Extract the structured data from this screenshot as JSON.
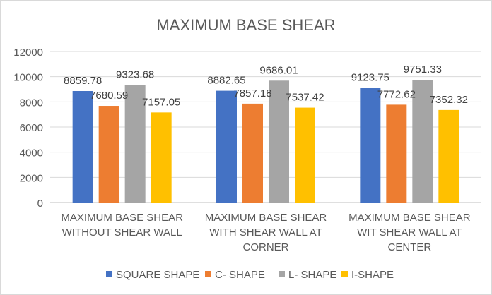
{
  "chart_data": {
    "type": "bar",
    "title": "MAXIMUM BASE SHEAR",
    "xlabel": "",
    "ylabel": "",
    "ylim": [
      0,
      12000
    ],
    "yticks": [
      0,
      2000,
      4000,
      6000,
      8000,
      10000,
      12000
    ],
    "grid": true,
    "legend_position": "bottom",
    "categories": [
      [
        "MAXIMUM BASE SHEAR",
        "WITHOUT SHEAR WALL"
      ],
      [
        "MAXIMUM BASE SHEAR",
        "WITH SHEAR WALL AT",
        "CORNER"
      ],
      [
        "MAXIMUM BASE SHEAR",
        "WIT SHEAR WALL AT",
        "CENTER"
      ]
    ],
    "series": [
      {
        "name": "SQUARE SHAPE",
        "color": "#4472C4",
        "values": [
          8859.78,
          8882.65,
          9123.75
        ],
        "labels": [
          "8859.78",
          "8882.65",
          "9123.75"
        ]
      },
      {
        "name": "C- SHAPE",
        "color": "#ED7D31",
        "values": [
          7680.59,
          7857.18,
          7772.62
        ],
        "labels": [
          "7680.59",
          "7857.18",
          "7772.62"
        ]
      },
      {
        "name": "L- SHAPE",
        "color": "#A5A5A5",
        "values": [
          9323.68,
          9686.01,
          9751.33
        ],
        "labels": [
          "9323.68",
          "9686.01",
          "9751.33"
        ]
      },
      {
        "name": "I-SHAPE",
        "color": "#FFC000",
        "values": [
          7157.05,
          7537.42,
          7352.32
        ],
        "labels": [
          "7157.05",
          "7537.42",
          "7352.32"
        ]
      }
    ]
  }
}
